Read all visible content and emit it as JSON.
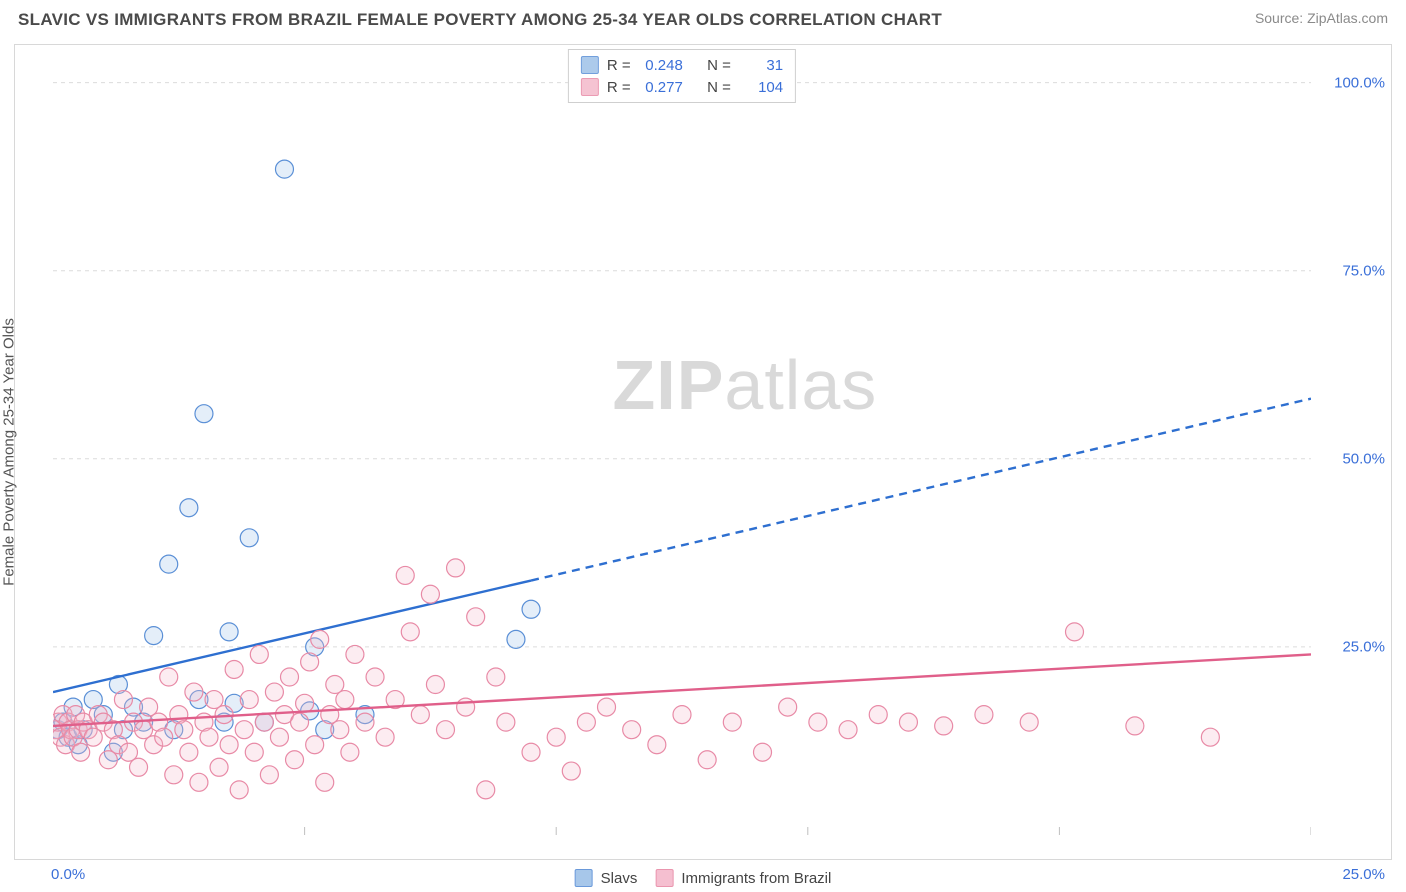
{
  "header": {
    "title": "SLAVIC VS IMMIGRANTS FROM BRAZIL FEMALE POVERTY AMONG 25-34 YEAR OLDS CORRELATION CHART",
    "source": "Source: ZipAtlas.com"
  },
  "ylabel": "Female Poverty Among 25-34 Year Olds",
  "watermark": {
    "bold": "ZIP",
    "light": "atlas"
  },
  "chart": {
    "type": "scatter",
    "background_color": "#ffffff",
    "grid_color": "#dcdcdc",
    "grid_dash": "4 4",
    "axis_color": "#bfbfbf",
    "tick_len": 8,
    "xlim": [
      0,
      25
    ],
    "ylim": [
      0,
      105
    ],
    "y_ticks": [
      25,
      50,
      75,
      100
    ],
    "y_tick_labels": [
      "25.0%",
      "50.0%",
      "75.0%",
      "100.0%"
    ],
    "x_ticks": [
      0,
      5,
      10,
      15,
      20,
      25
    ],
    "x_origin_label": "0.0%",
    "x_end_label": "25.0%",
    "y_tick_label_color": "#3a6fd8",
    "x_tick_label_color": "#3a6fd8",
    "marker_radius": 9,
    "marker_stroke_width": 1.2,
    "marker_fill_opacity": 0.28,
    "series": [
      {
        "key": "slavs",
        "label": "Slavs",
        "color_stroke": "#5a8fd6",
        "color_fill": "#9ec1e8",
        "R": "0.248",
        "N": "31",
        "trend": {
          "color": "#2e6fd0",
          "width": 2.4,
          "solid_from_x": 0,
          "solid_to_x": 9.5,
          "dash_to_x": 25,
          "y_at_x0": 19,
          "y_at_xmax": 58,
          "dash_pattern": "8 6"
        },
        "points": [
          [
            0.1,
            14
          ],
          [
            0.2,
            15
          ],
          [
            0.3,
            13
          ],
          [
            0.4,
            17
          ],
          [
            0.5,
            12
          ],
          [
            0.6,
            14
          ],
          [
            0.8,
            18
          ],
          [
            1.0,
            16
          ],
          [
            1.2,
            11
          ],
          [
            1.3,
            20
          ],
          [
            1.4,
            14
          ],
          [
            1.6,
            17
          ],
          [
            1.8,
            15
          ],
          [
            2.0,
            26.5
          ],
          [
            2.3,
            36
          ],
          [
            2.4,
            14
          ],
          [
            2.7,
            43.5
          ],
          [
            2.9,
            18
          ],
          [
            3.0,
            56
          ],
          [
            3.4,
            15
          ],
          [
            3.5,
            27
          ],
          [
            3.6,
            17.5
          ],
          [
            3.9,
            39.5
          ],
          [
            4.2,
            15
          ],
          [
            4.6,
            88.5
          ],
          [
            5.1,
            16.5
          ],
          [
            5.2,
            25
          ],
          [
            5.4,
            14
          ],
          [
            6.2,
            16
          ],
          [
            9.2,
            26
          ],
          [
            9.5,
            30
          ]
        ]
      },
      {
        "key": "brazil",
        "label": "Immigrants from Brazil",
        "color_stroke": "#e88aa6",
        "color_fill": "#f4b9cb",
        "R": "0.277",
        "N": "104",
        "trend": {
          "color": "#e05f8a",
          "width": 2.4,
          "solid_from_x": 0,
          "solid_to_x": 25,
          "dash_to_x": 25,
          "y_at_x0": 14.5,
          "y_at_xmax": 24,
          "dash_pattern": ""
        },
        "points": [
          [
            0.05,
            14
          ],
          [
            0.1,
            15
          ],
          [
            0.15,
            13
          ],
          [
            0.2,
            16
          ],
          [
            0.25,
            12
          ],
          [
            0.3,
            15
          ],
          [
            0.35,
            14
          ],
          [
            0.4,
            13
          ],
          [
            0.45,
            16
          ],
          [
            0.5,
            14
          ],
          [
            0.55,
            11
          ],
          [
            0.6,
            15
          ],
          [
            0.7,
            14
          ],
          [
            0.8,
            13
          ],
          [
            0.9,
            16
          ],
          [
            1.0,
            15
          ],
          [
            1.1,
            10
          ],
          [
            1.2,
            14
          ],
          [
            1.3,
            12
          ],
          [
            1.4,
            18
          ],
          [
            1.5,
            11
          ],
          [
            1.6,
            15
          ],
          [
            1.7,
            9
          ],
          [
            1.8,
            14
          ],
          [
            1.9,
            17
          ],
          [
            2.0,
            12
          ],
          [
            2.1,
            15
          ],
          [
            2.2,
            13
          ],
          [
            2.3,
            21
          ],
          [
            2.4,
            8
          ],
          [
            2.5,
            16
          ],
          [
            2.6,
            14
          ],
          [
            2.7,
            11
          ],
          [
            2.8,
            19
          ],
          [
            2.9,
            7
          ],
          [
            3.0,
            15
          ],
          [
            3.1,
            13
          ],
          [
            3.2,
            18
          ],
          [
            3.3,
            9
          ],
          [
            3.4,
            16
          ],
          [
            3.5,
            12
          ],
          [
            3.6,
            22
          ],
          [
            3.7,
            6
          ],
          [
            3.8,
            14
          ],
          [
            3.9,
            18
          ],
          [
            4.0,
            11
          ],
          [
            4.1,
            24
          ],
          [
            4.2,
            15
          ],
          [
            4.3,
            8
          ],
          [
            4.4,
            19
          ],
          [
            4.5,
            13
          ],
          [
            4.6,
            16
          ],
          [
            4.7,
            21
          ],
          [
            4.8,
            10
          ],
          [
            4.9,
            15
          ],
          [
            5.0,
            17.5
          ],
          [
            5.1,
            23
          ],
          [
            5.2,
            12
          ],
          [
            5.3,
            26
          ],
          [
            5.4,
            7
          ],
          [
            5.5,
            16
          ],
          [
            5.6,
            20
          ],
          [
            5.7,
            14
          ],
          [
            5.8,
            18
          ],
          [
            5.9,
            11
          ],
          [
            6.0,
            24
          ],
          [
            6.2,
            15
          ],
          [
            6.4,
            21
          ],
          [
            6.6,
            13
          ],
          [
            6.8,
            18
          ],
          [
            7.0,
            34.5
          ],
          [
            7.1,
            27
          ],
          [
            7.3,
            16
          ],
          [
            7.5,
            32
          ],
          [
            7.6,
            20
          ],
          [
            7.8,
            14
          ],
          [
            8.0,
            35.5
          ],
          [
            8.2,
            17
          ],
          [
            8.4,
            29
          ],
          [
            8.6,
            6
          ],
          [
            8.8,
            21
          ],
          [
            9.0,
            15
          ],
          [
            9.5,
            11
          ],
          [
            10.0,
            13
          ],
          [
            10.3,
            8.5
          ],
          [
            10.6,
            15
          ],
          [
            11.0,
            17
          ],
          [
            11.5,
            14
          ],
          [
            12.0,
            12
          ],
          [
            12.5,
            16
          ],
          [
            13.0,
            10
          ],
          [
            13.5,
            15
          ],
          [
            14.1,
            11
          ],
          [
            14.6,
            17
          ],
          [
            15.2,
            15
          ],
          [
            15.8,
            14
          ],
          [
            16.4,
            16
          ],
          [
            17.0,
            15
          ],
          [
            17.7,
            14.5
          ],
          [
            18.5,
            16
          ],
          [
            19.4,
            15
          ],
          [
            20.3,
            27
          ],
          [
            21.5,
            14.5
          ],
          [
            23.0,
            13
          ]
        ]
      }
    ]
  },
  "r_legend_labels": {
    "R": "R =",
    "N": "N ="
  },
  "bottom_legend": {
    "items": [
      {
        "series": "slavs",
        "label": "Slavs"
      },
      {
        "series": "brazil",
        "label": "Immigrants from Brazil"
      }
    ]
  }
}
